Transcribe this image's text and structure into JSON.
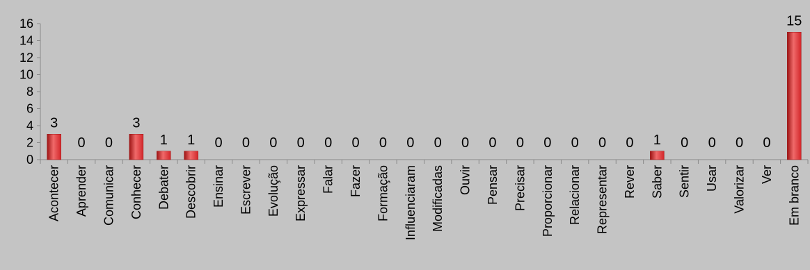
{
  "chart_data": {
    "type": "bar",
    "categories": [
      "Acontecer",
      "Aprender",
      "Comunicar",
      "Conhecer",
      "Debater",
      "Descobrir",
      "Ensinar",
      "Escrever",
      "Evolução",
      "Expressar",
      "Falar",
      "Fazer",
      "Formação",
      "Influenciaram",
      "Modificadas",
      "Ouvir",
      "Pensar",
      "Precisar",
      "Proporcionar",
      "Relacionar",
      "Representar",
      "Rever",
      "Saber",
      "Sentir",
      "Usar",
      "Valorizar",
      "Ver",
      "Em branco"
    ],
    "values": [
      3,
      0,
      0,
      3,
      1,
      1,
      0,
      0,
      0,
      0,
      0,
      0,
      0,
      0,
      0,
      0,
      0,
      0,
      0,
      0,
      0,
      0,
      1,
      0,
      0,
      0,
      0,
      15
    ],
    "ylim": [
      0,
      16
    ],
    "yticks": [
      0,
      2,
      4,
      6,
      8,
      10,
      12,
      14,
      16
    ],
    "grid": false,
    "legend": "none",
    "title": "",
    "xlabel": "",
    "ylabel": "",
    "colors": {
      "background": "#c4c4c4",
      "bar": "#d2262a",
      "bar_dark": "#9c1414",
      "bar_light": "#f06a6a",
      "axis": "#8a8a8a"
    }
  }
}
